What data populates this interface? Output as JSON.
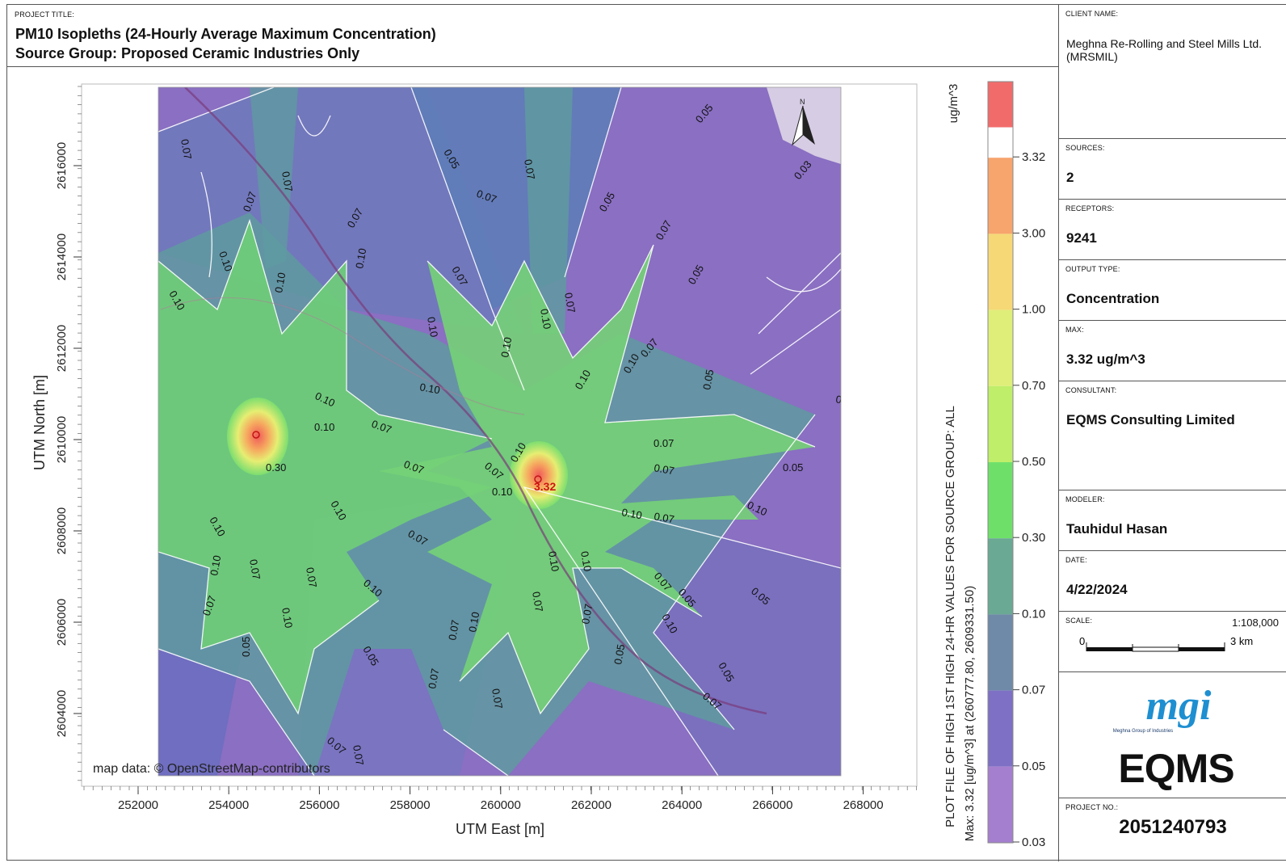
{
  "title": {
    "label": "PROJECT TITLE:",
    "line1": "PM10 Isopleths (24-Hourly Average Maximum Concentration)",
    "line2": "Source Group: Proposed Ceramic Industries Only"
  },
  "map": {
    "x_axis_title": "UTM East [m]",
    "y_axis_title": "UTM North [m]",
    "x_ticks": [
      "252000",
      "254000",
      "256000",
      "258000",
      "260000",
      "262000",
      "264000",
      "266000",
      "268000"
    ],
    "y_ticks": [
      "2616000",
      "2614000",
      "2612000",
      "2610000",
      "2608000",
      "2606000",
      "2604000"
    ],
    "attribution": "map data: © OpenStreetMap-contributors",
    "max_label": "3.32",
    "north_label": "N",
    "contour_labels": [
      "0.07",
      "0.10",
      "0.05",
      "0.30",
      "0.03"
    ]
  },
  "colorbar": {
    "unit": "ug/m^3",
    "labels": [
      "3.32",
      "3.00",
      "1.00",
      "0.70",
      "0.50",
      "0.30",
      "0.10",
      "0.07",
      "0.05",
      "0.03"
    ],
    "colors": [
      "#f47a7a",
      "#f7a46d",
      "#f6d877",
      "#dfee78",
      "#bfee6a",
      "#6ee06a",
      "#6aa993",
      "#6f8aa8",
      "#7e70c4",
      "#a57fcf"
    ],
    "caption_line1": "PLOT FILE OF HIGH 1ST HIGH 24-HR VALUES FOR SOURCE GROUP: ALL",
    "caption_line2": "Max:  3.32  [ug/m^3]  at  (260777.80, 2609331.50)"
  },
  "panel": {
    "client_label": "CLIENT NAME:",
    "client_value": "Meghna Re-Rolling and Steel Mills Ltd. (MRSMIL)",
    "sources_label": "SOURCES:",
    "sources_value": "2",
    "receptors_label": "RECEPTORS:",
    "receptors_value": "9241",
    "output_label": "OUTPUT TYPE:",
    "output_value": "Concentration",
    "max_label": "MAX:",
    "max_value": "3.32 ug/m^3",
    "consultant_label": "CONSULTANT:",
    "consultant_value": "EQMS Consulting Limited",
    "modeler_label": "MODELER:",
    "modeler_value": "Tauhidul Hasan",
    "date_label": "DATE:",
    "date_value": "4/22/2024",
    "scale_label": "SCALE:",
    "scale_ratio": "1:108,000",
    "scale_zero": "0",
    "scale_km": "3 km",
    "logo_mgi": "mgi",
    "logo_mgi_sub": "Meghna Group of Industries",
    "logo_eqms": "EQMS",
    "project_no_label": "PROJECT NO.:",
    "project_no_value": "2051240793"
  }
}
